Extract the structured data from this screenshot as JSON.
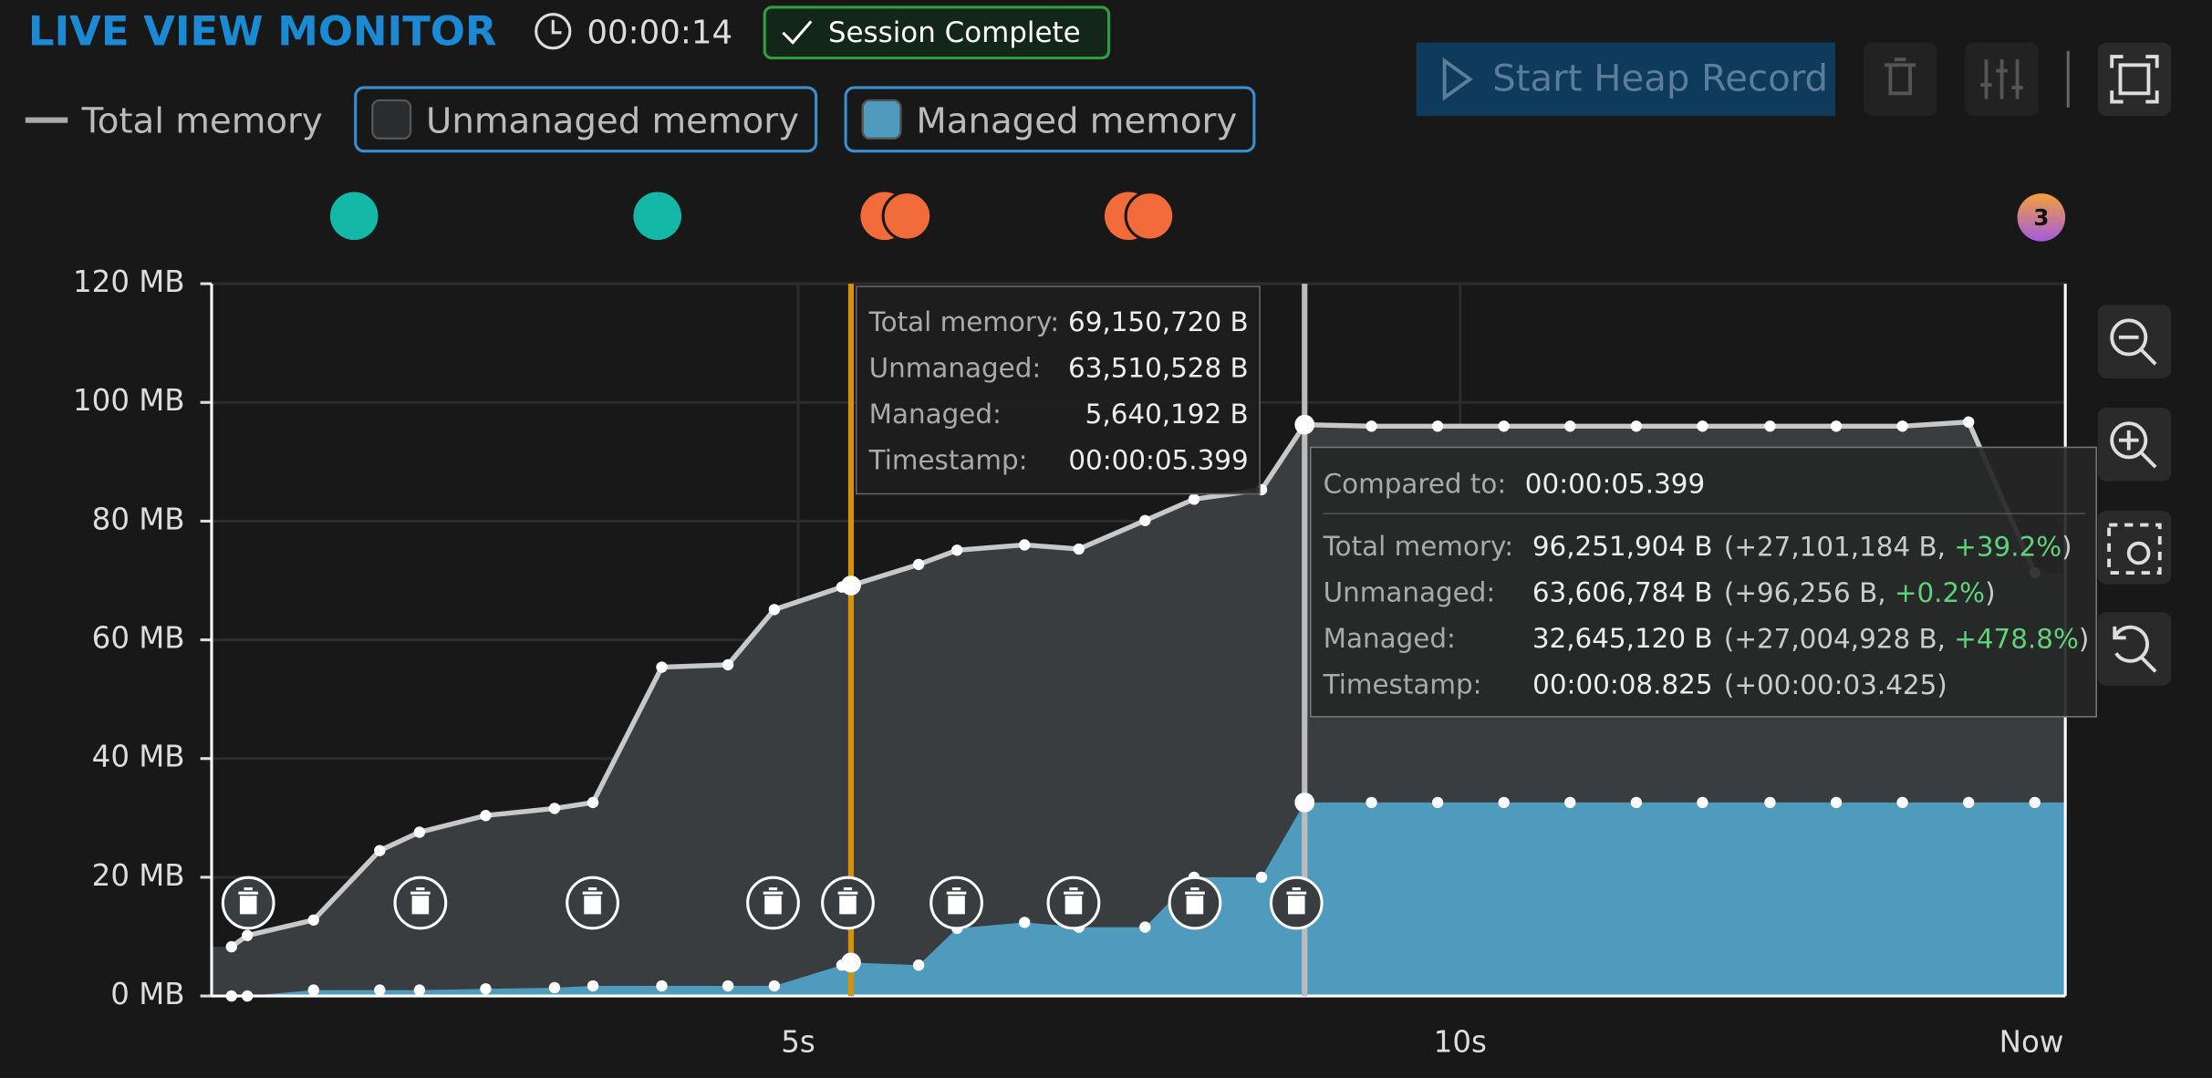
{
  "header": {
    "title": "LIVE VIEW MONITOR",
    "timer": "00:00:14",
    "status": "Session Complete",
    "button": "Start Heap Record",
    "event_badge": "3"
  },
  "chart_data": {
    "type": "area",
    "x": [
      0.72,
      0.84,
      1.34,
      1.84,
      2.14,
      2.64,
      3.16,
      3.45,
      3.97,
      4.47,
      4.82,
      5.33,
      5.399,
      5.91,
      6.2,
      6.71,
      7.12,
      7.62,
      7.99,
      8.5,
      8.825,
      9.33,
      9.83,
      10.33,
      10.83,
      11.33,
      11.83,
      12.34,
      12.84,
      13.34,
      13.84,
      14.34
    ],
    "series": [
      {
        "name": "Total memory",
        "color": "#c8c8c8",
        "area_color": "#3a3d40",
        "visible": true,
        "values": [
          8.3,
          10.2,
          12.8,
          24.5,
          27.6,
          30.4,
          31.6,
          32.6,
          55.4,
          55.8,
          65.1,
          68.9,
          69.15,
          72.7,
          75.1,
          76.0,
          75.3,
          80.1,
          83.7,
          85.3,
          96.25,
          96.0,
          96.0,
          96.0,
          96.0,
          96.0,
          96.0,
          96.0,
          96.0,
          96.0,
          96.7,
          71.3
        ]
      },
      {
        "name": "Unmanaged memory",
        "color": "#3a3d40",
        "visible": false
      },
      {
        "name": "Managed memory",
        "color": "#4f9bbd",
        "visible": true,
        "values": [
          0,
          0,
          1.0,
          1.0,
          1.0,
          1.2,
          1.4,
          1.7,
          1.7,
          1.7,
          1.7,
          5.2,
          5.64,
          5.2,
          11.4,
          12.4,
          11.6,
          11.6,
          20.0,
          20.0,
          32.6,
          32.6,
          32.6,
          32.6,
          32.6,
          32.6,
          32.6,
          32.6,
          32.6,
          32.6,
          32.6,
          32.6
        ]
      }
    ],
    "xlim": [
      0.57,
      14.57
    ],
    "xticks": [
      {
        "value": 5,
        "label": "5s"
      },
      {
        "value": 10,
        "label": "10s"
      },
      {
        "value": 14.57,
        "label": "Now"
      }
    ],
    "ylim": [
      0,
      120
    ],
    "yticks": [
      {
        "value": 0,
        "label": "0 MB"
      },
      {
        "value": 20,
        "label": "20 MB"
      },
      {
        "value": 40,
        "label": "40 MB"
      },
      {
        "value": 60,
        "label": "60 MB"
      },
      {
        "value": 80,
        "label": "80 MB"
      },
      {
        "value": 100,
        "label": "100 MB"
      },
      {
        "value": 120,
        "label": "120 MB"
      }
    ],
    "grid": true,
    "cursor_x": 5.399,
    "compare_x": 8.825
  },
  "tooltip": {
    "rows": [
      {
        "label": "Total memory:",
        "value": "69,150,720 B"
      },
      {
        "label": "Unmanaged:",
        "value": "63,510,528 B"
      },
      {
        "label": "Managed:",
        "value": "5,640,192 B"
      },
      {
        "label": "Timestamp:",
        "value": "00:00:05.399"
      }
    ]
  },
  "compare": {
    "label": "Compared to:",
    "value": "00:00:05.399",
    "rows": [
      {
        "label": "Total memory:",
        "value": "96,251,904 B",
        "delta": "(+27,101,184 B,",
        "pct": "+39.2%",
        "close": ")"
      },
      {
        "label": "Unmanaged:",
        "value": "63,606,784 B",
        "delta": "(+96,256 B,",
        "pct": "+0.2%",
        "close": ")"
      },
      {
        "label": "Managed:",
        "value": "32,645,120 B",
        "delta": "(+27,004,928 B,",
        "pct": "+478.8%",
        "close": ")"
      },
      {
        "label": "Timestamp:",
        "value": "00:00:08.825",
        "delta": "(+00:00:03.425)"
      }
    ]
  }
}
